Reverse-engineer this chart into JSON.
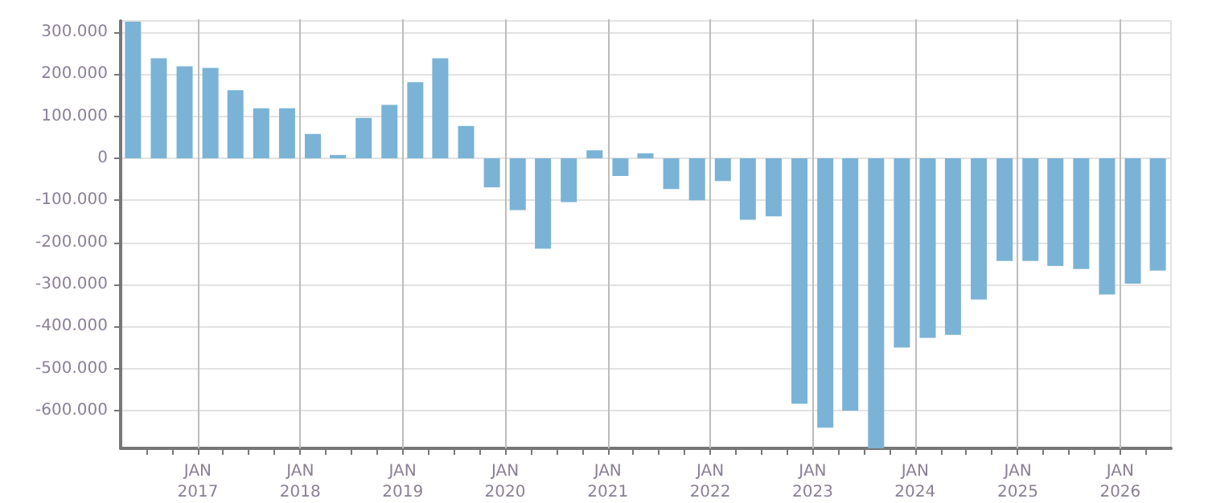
{
  "chart_data": {
    "type": "bar",
    "color": "#7ab3d5",
    "x": [
      "2016-05-15",
      "2016-08-15",
      "2016-11-15",
      "2017-02-15",
      "2017-05-15",
      "2017-08-15",
      "2017-11-15",
      "2018-02-15",
      "2018-05-15",
      "2018-08-15",
      "2018-11-15",
      "2019-02-15",
      "2019-05-15",
      "2019-08-15",
      "2019-11-15",
      "2020-02-15",
      "2020-05-15",
      "2020-08-15",
      "2020-11-15",
      "2021-02-15",
      "2021-05-15",
      "2021-08-15",
      "2021-11-15",
      "2022-02-15",
      "2022-05-15",
      "2022-08-15",
      "2022-11-15",
      "2023-02-15",
      "2023-05-15",
      "2023-08-15",
      "2023-11-15",
      "2024-02-15",
      "2024-05-15",
      "2024-08-15",
      "2024-11-15",
      "2025-02-15",
      "2025-05-15",
      "2025-08-15",
      "2025-11-15",
      "2026-02-15",
      "2026-05-15"
    ],
    "values": [
      325000,
      238000,
      219000,
      215000,
      162000,
      119000,
      119000,
      58000,
      8000,
      96000,
      127000,
      181000,
      238000,
      77000,
      -69000,
      -123000,
      -215000,
      -104000,
      19000,
      -42000,
      12000,
      -73000,
      -100000,
      -54000,
      -146000,
      -138000,
      -584000,
      -641000,
      -600000,
      -690000,
      -450000,
      -427000,
      -420000,
      -336000,
      -244000,
      -244000,
      -256000,
      -263000,
      -324000,
      -298000,
      -267000
    ],
    "xlim": [
      "2016-04-01",
      "2026-07-01"
    ],
    "xticks": [
      {
        "value": "2016-07-01",
        "label": null
      },
      {
        "value": "2016-10-01",
        "label": null
      },
      {
        "value": "2017-01-01",
        "label": "JAN\n2017"
      },
      {
        "value": "2017-04-01",
        "label": null
      },
      {
        "value": "2017-07-01",
        "label": null
      },
      {
        "value": "2017-10-01",
        "label": null
      },
      {
        "value": "2018-01-01",
        "label": "JAN\n2018"
      },
      {
        "value": "2018-04-01",
        "label": null
      },
      {
        "value": "2018-07-01",
        "label": null
      },
      {
        "value": "2018-10-01",
        "label": null
      },
      {
        "value": "2019-01-01",
        "label": "JAN\n2019"
      },
      {
        "value": "2019-04-01",
        "label": null
      },
      {
        "value": "2019-07-01",
        "label": null
      },
      {
        "value": "2019-10-01",
        "label": null
      },
      {
        "value": "2020-01-01",
        "label": "JAN\n2020"
      },
      {
        "value": "2020-04-01",
        "label": null
      },
      {
        "value": "2020-07-01",
        "label": null
      },
      {
        "value": "2020-10-01",
        "label": null
      },
      {
        "value": "2021-01-01",
        "label": "JAN\n2021"
      },
      {
        "value": "2021-04-01",
        "label": null
      },
      {
        "value": "2021-07-01",
        "label": null
      },
      {
        "value": "2021-10-01",
        "label": null
      },
      {
        "value": "2022-01-01",
        "label": "JAN\n2022"
      },
      {
        "value": "2022-04-01",
        "label": null
      },
      {
        "value": "2022-07-01",
        "label": null
      },
      {
        "value": "2022-10-01",
        "label": null
      },
      {
        "value": "2023-01-01",
        "label": "JAN\n2023"
      },
      {
        "value": "2023-04-01",
        "label": null
      },
      {
        "value": "2023-07-01",
        "label": null
      },
      {
        "value": "2023-10-01",
        "label": null
      },
      {
        "value": "2024-01-01",
        "label": "JAN\n2024"
      },
      {
        "value": "2024-04-01",
        "label": null
      },
      {
        "value": "2024-07-01",
        "label": null
      },
      {
        "value": "2024-10-01",
        "label": null
      },
      {
        "value": "2025-01-01",
        "label": "JAN\n2025"
      },
      {
        "value": "2025-04-01",
        "label": null
      },
      {
        "value": "2025-07-01",
        "label": null
      },
      {
        "value": "2025-10-01",
        "label": null
      },
      {
        "value": "2026-01-01",
        "label": "JAN\n2026"
      },
      {
        "value": "2026-04-01",
        "label": null
      }
    ],
    "ylim": [
      -690000,
      327000
    ],
    "yticks": [
      {
        "value": -600000,
        "label": "-600.000"
      },
      {
        "value": -500000,
        "label": "-500.000"
      },
      {
        "value": -400000,
        "label": "-400.000"
      },
      {
        "value": -300000,
        "label": "-300.000"
      },
      {
        "value": -200000,
        "label": "-200.000"
      },
      {
        "value": -100000,
        "label": "-100.000"
      },
      0,
      {
        "value": 100000,
        "label": "100.000"
      },
      {
        "value": 200000,
        "label": "200.000"
      },
      {
        "value": 300000,
        "label": "300.000"
      }
    ],
    "grid": true
  }
}
